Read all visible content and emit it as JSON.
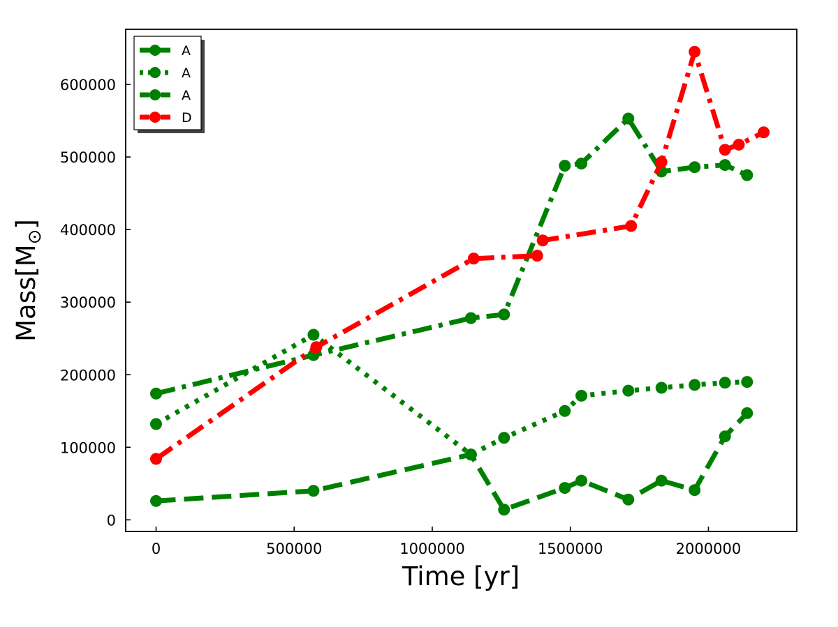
{
  "chart_data": {
    "type": "line",
    "xlabel": "Time [yr]",
    "ylabel_main": "Mass[M",
    "ylabel_sub": "⊙",
    "ylabel_close": "]",
    "xlim": [
      -110000,
      2320000
    ],
    "ylim": [
      -16000,
      676000
    ],
    "xticks": [
      0,
      500000,
      1000000,
      1500000,
      2000000
    ],
    "xtick_labels": [
      "0",
      "500000",
      "1000000",
      "1500000",
      "2000000"
    ],
    "yticks": [
      0,
      100000,
      200000,
      300000,
      400000,
      500000,
      600000
    ],
    "ytick_labels": [
      "0",
      "100000",
      "200000",
      "300000",
      "400000",
      "500000",
      "600000"
    ],
    "grid": false,
    "legend_position": "top-left",
    "series": [
      {
        "name": "A",
        "style": "dashed",
        "color": "#008000",
        "x": [
          0,
          570000,
          1140000,
          1260000,
          1480000,
          1540000,
          1710000,
          1830000,
          1950000,
          2060000,
          2140000
        ],
        "y": [
          26000,
          40000,
          90000,
          14000,
          44000,
          54000,
          28000,
          54000,
          41000,
          115000,
          147000
        ]
      },
      {
        "name": "A",
        "style": "dotted",
        "color": "#008000",
        "x": [
          0,
          570000,
          1140000,
          1260000,
          1480000,
          1540000,
          1710000,
          1830000,
          1950000,
          2060000,
          2140000
        ],
        "y": [
          132000,
          255000,
          90000,
          113000,
          150000,
          171000,
          178000,
          182000,
          186000,
          189000,
          190000
        ]
      },
      {
        "name": "A",
        "style": "dashdot",
        "color": "#008000",
        "x": [
          0,
          570000,
          1140000,
          1260000,
          1480000,
          1540000,
          1710000,
          1830000,
          1950000,
          2060000,
          2140000
        ],
        "y": [
          174000,
          227000,
          278000,
          283000,
          488000,
          491000,
          553000,
          480000,
          486000,
          489000,
          475000
        ]
      },
      {
        "name": "D",
        "style": "dashdot",
        "color": "#ff0000",
        "x": [
          0,
          580000,
          1150000,
          1380000,
          1400000,
          1720000,
          1830000,
          1950000,
          2060000,
          2110000,
          2200000
        ],
        "y": [
          84000,
          238000,
          360000,
          364000,
          385000,
          405000,
          493000,
          645000,
          510000,
          517000,
          534000
        ]
      }
    ]
  }
}
